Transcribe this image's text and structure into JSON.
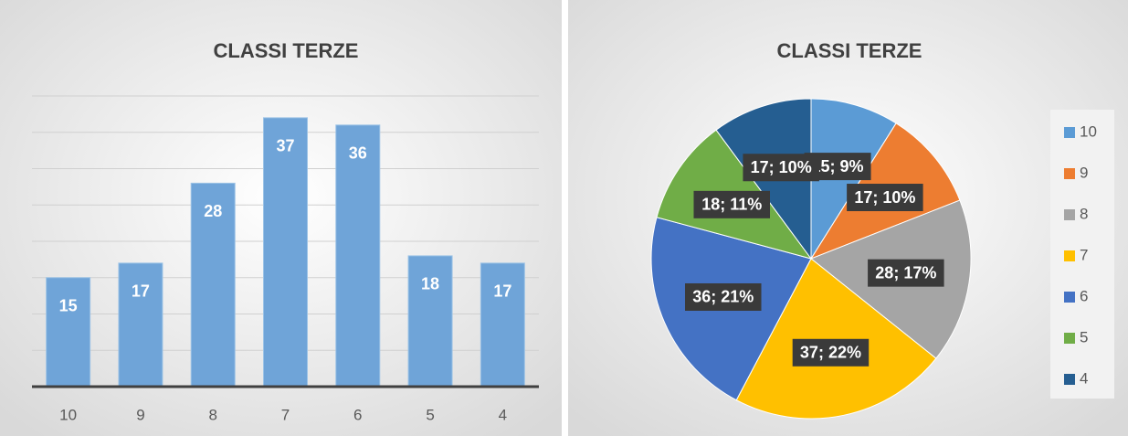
{
  "chart_data": [
    {
      "type": "bar",
      "title": "CLASSI   TERZE",
      "categories": [
        "10",
        "9",
        "8",
        "7",
        "6",
        "5",
        "4"
      ],
      "values": [
        15,
        17,
        28,
        37,
        36,
        18,
        17
      ],
      "color": "#6fa4d8",
      "ylim": [
        0,
        40
      ],
      "yticks": [
        0,
        5,
        10,
        15,
        20,
        25,
        30,
        35,
        40
      ],
      "grid": true
    },
    {
      "type": "pie",
      "title": "CLASSI   TERZE",
      "categories": [
        "10",
        "9",
        "8",
        "7",
        "6",
        "5",
        "4"
      ],
      "values": [
        15,
        17,
        28,
        37,
        36,
        18,
        17
      ],
      "value_labels": [
        "15; 9%",
        "17; 10%",
        "28; 17%",
        "37; 22%",
        "36; 21%",
        "18; 11%",
        "17; 10%"
      ],
      "colors": [
        "#5b9bd5",
        "#ed7d31",
        "#a5a5a5",
        "#ffc000",
        "#4472c4",
        "#70ad47",
        "#255e91"
      ],
      "legend": "right"
    }
  ]
}
